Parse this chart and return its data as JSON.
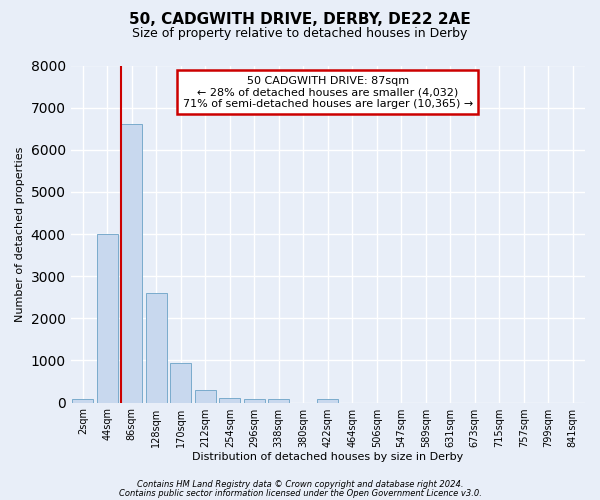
{
  "title1": "50, CADGWITH DRIVE, DERBY, DE22 2AE",
  "title2": "Size of property relative to detached houses in Derby",
  "xlabel": "Distribution of detached houses by size in Derby",
  "ylabel": "Number of detached properties",
  "categories": [
    "2sqm",
    "44sqm",
    "86sqm",
    "128sqm",
    "170sqm",
    "212sqm",
    "254sqm",
    "296sqm",
    "338sqm",
    "380sqm",
    "422sqm",
    "464sqm",
    "506sqm",
    "547sqm",
    "589sqm",
    "631sqm",
    "673sqm",
    "715sqm",
    "757sqm",
    "799sqm",
    "841sqm"
  ],
  "values": [
    75,
    4000,
    6600,
    2600,
    950,
    300,
    120,
    90,
    75,
    0,
    90,
    0,
    0,
    0,
    0,
    0,
    0,
    0,
    0,
    0,
    0
  ],
  "bar_color": "#c8d8ee",
  "bar_edgecolor": "#7aabcc",
  "red_line_bar_index": 2,
  "annotation_line1": "50 CADGWITH DRIVE: 87sqm",
  "annotation_line2": "← 28% of detached houses are smaller (4,032)",
  "annotation_line3": "71% of semi-detached houses are larger (10,365) →",
  "annotation_box_facecolor": "#ffffff",
  "annotation_box_edgecolor": "#cc0000",
  "ylim": [
    0,
    8000
  ],
  "yticks": [
    0,
    1000,
    2000,
    3000,
    4000,
    5000,
    6000,
    7000,
    8000
  ],
  "footer1": "Contains HM Land Registry data © Crown copyright and database right 2024.",
  "footer2": "Contains public sector information licensed under the Open Government Licence v3.0.",
  "background_color": "#e8eef8",
  "grid_color": "#ffffff",
  "title1_fontsize": 11,
  "title2_fontsize": 9,
  "annot_fontsize": 8,
  "tick_fontsize": 7,
  "label_fontsize": 8
}
